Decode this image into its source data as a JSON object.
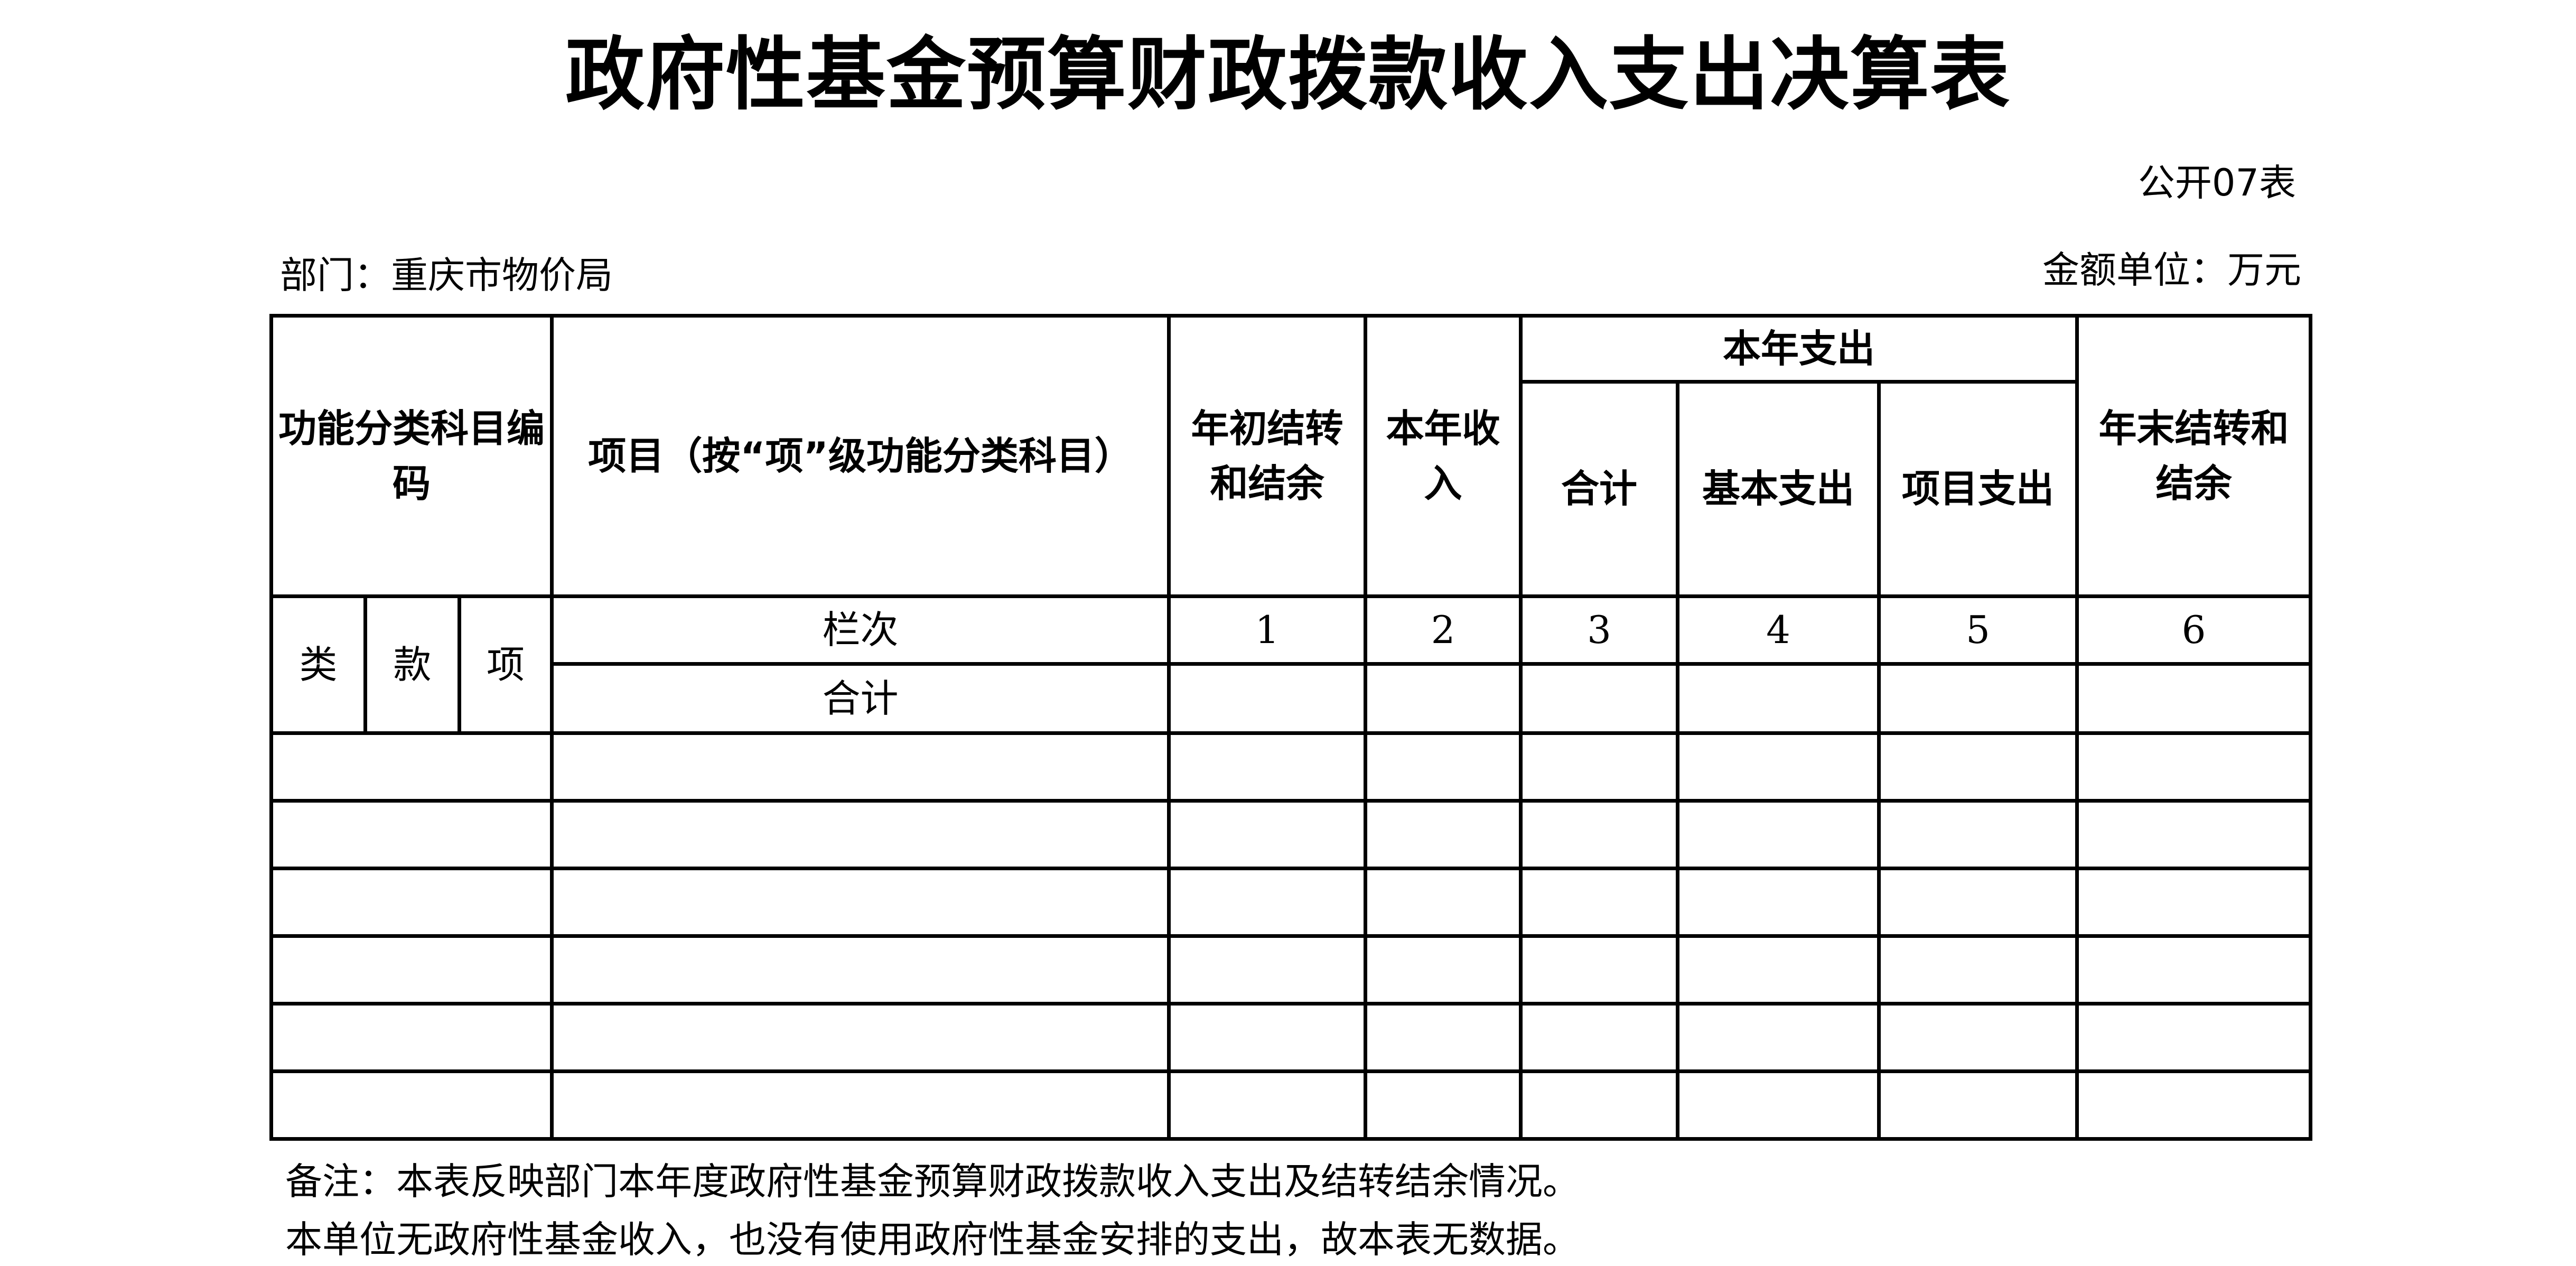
{
  "title": "政府性基金预算财政拨款收入支出决算表",
  "form_code": "公开07表",
  "department": "部门：重庆市物价局",
  "unit": "金额单位：万元",
  "table": {
    "headers": {
      "func_code": "功能分类科目编码",
      "item": "项目（按“项”级功能分类科目）",
      "begin_balance": "年初结转和结余",
      "income": "本年收入",
      "expense": "本年支出",
      "expense_total": "合计",
      "expense_basic": "基本支出",
      "expense_project": "项目支出",
      "end_balance": "年末结转和结余"
    },
    "sub": {
      "lei": "类",
      "kuan": "款",
      "xiang": "项"
    },
    "column_row_label": "栏次",
    "column_numbers": [
      "1",
      "2",
      "3",
      "4",
      "5",
      "6"
    ],
    "total_label": "合计"
  },
  "notes": [
    "备注：本表反映部门本年度政府性基金预算财政拨款收入支出及结转结余情况。",
    "本单位无政府性基金收入，也没有使用政府性基金安排的支出，故本表无数据。"
  ]
}
